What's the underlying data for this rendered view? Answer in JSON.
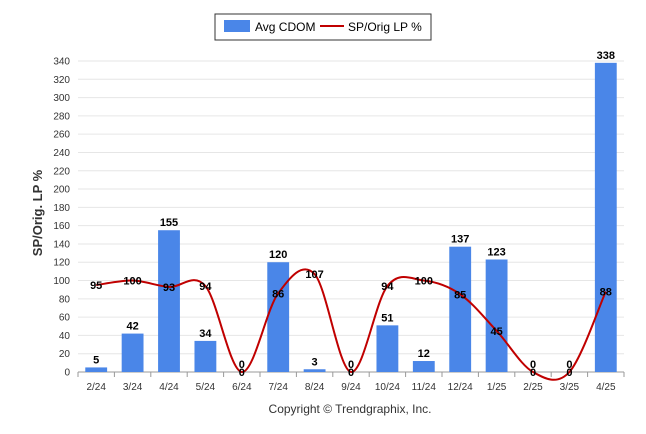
{
  "chart_data": {
    "type": "bar",
    "categories": [
      "2/24",
      "3/24",
      "4/24",
      "5/24",
      "6/24",
      "7/24",
      "8/24",
      "9/24",
      "10/24",
      "11/24",
      "12/24",
      "1/25",
      "2/25",
      "3/25",
      "4/25"
    ],
    "series": [
      {
        "name": "Avg CDOM",
        "type": "bar",
        "values": [
          5,
          42,
          155,
          34,
          0,
          120,
          3,
          0,
          51,
          12,
          137,
          123,
          0,
          0,
          338
        ],
        "color": "#4a86e8"
      },
      {
        "name": "SP/Orig LP %",
        "type": "line",
        "values": [
          95,
          100,
          93,
          94,
          0,
          86,
          107,
          0,
          94,
          100,
          85,
          45,
          0,
          0,
          88
        ],
        "color": "#c00000"
      }
    ],
    "ylabel": "SP/Orig. LP %",
    "xlabel": "",
    "ylim": [
      0,
      340
    ],
    "yticks": [
      0,
      20,
      40,
      60,
      80,
      100,
      120,
      140,
      160,
      180,
      200,
      220,
      240,
      260,
      280,
      300,
      320,
      340
    ],
    "grid": true,
    "legend_position": "top-center"
  },
  "footer": {
    "copyright": "Copyright © Trendgraphix, Inc."
  }
}
